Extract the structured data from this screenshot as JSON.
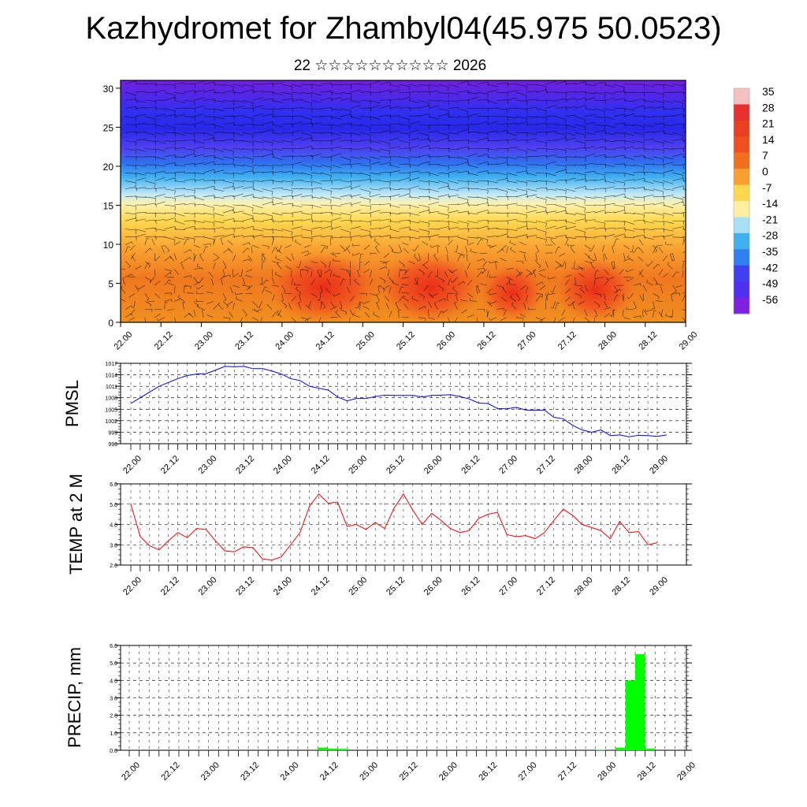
{
  "title": "Kazhydromet for Zhambyl04(45.975 50.0523)",
  "subtitle": "22 ☆☆☆☆☆☆☆☆☆☆ 2026",
  "x_tick_labels": [
    "22.00",
    "22.12",
    "23.00",
    "23.12",
    "24.00",
    "24.12",
    "25.00",
    "25.12",
    "26.00",
    "26.12",
    "27.00",
    "27.12",
    "28.00",
    "28.12",
    "29.00"
  ],
  "colors": {
    "pmsl_line": "#0000ff",
    "temp_line": "#ff0000",
    "precip_bar": "#00ff00"
  },
  "chart_data": [
    {
      "type": "heatmap",
      "title": "",
      "xlabel": "",
      "ylabel": "",
      "ylim": [
        0,
        31
      ],
      "yticks": [
        0,
        5,
        10,
        15,
        20,
        25,
        30
      ],
      "colorbar_labels": [
        "35",
        "28",
        "21",
        "14",
        "7",
        "0",
        "-7",
        "-14",
        "-21",
        "-28",
        "-35",
        "-42",
        "-49",
        "-56"
      ],
      "colorbar_colors": [
        "#f5c0c0",
        "#e83030",
        "#e84020",
        "#f05020",
        "#f07020",
        "#f8a030",
        "#ffd850",
        "#fff0a0",
        "#a8e0f8",
        "#40b0f0",
        "#3080f0",
        "#4040f0",
        "#5030f0",
        "#8020e0"
      ],
      "overlay": "wind barbs"
    },
    {
      "type": "line",
      "ylabel": "PMSL",
      "ylim": [
        996,
        1017
      ],
      "yticks": [
        "996",
        "999",
        "1002",
        "1005",
        "1008",
        "1011",
        "1014",
        "1017"
      ],
      "series": [
        {
          "values": [
            1006.5,
            1008,
            1009.5,
            1011,
            1012,
            1013,
            1013.8,
            1014.2,
            1014.3,
            1015.2,
            1016.2,
            1016.1,
            1016.2,
            1015.6,
            1015.6,
            1015,
            1014.2,
            1013,
            1012.5,
            1011,
            1010.5,
            1010,
            1008.2,
            1007.2,
            1007.8,
            1007.8,
            1008.3,
            1008.7,
            1008.6,
            1008.6,
            1008.6,
            1008.2,
            1008.6,
            1008.7,
            1008.8,
            1008.3,
            1007.7,
            1006.6,
            1006.5,
            1005.2,
            1005.1,
            1005.5,
            1004.8,
            1004.7,
            1004.8,
            1002.9,
            1002.5,
            1000.8,
            999.6,
            999,
            999.6,
            998.1,
            998.3,
            997.8,
            998.2,
            998.1,
            997.9,
            998.3
          ]
        }
      ]
    },
    {
      "type": "line",
      "ylabel": "TEMP at 2 M",
      "ylim": [
        2.0,
        6.0
      ],
      "yticks": [
        "2.0",
        "3.0",
        "4.0",
        "5.0",
        "6.0"
      ],
      "series": [
        {
          "values": [
            5.0,
            3.4,
            2.95,
            2.75,
            3.2,
            3.6,
            3.35,
            3.8,
            3.75,
            3.2,
            2.7,
            2.65,
            2.9,
            2.85,
            2.3,
            2.25,
            2.4,
            3.0,
            3.6,
            4.9,
            5.5,
            5.05,
            5.1,
            3.9,
            4.0,
            3.75,
            4.1,
            3.8,
            4.8,
            5.5,
            4.7,
            4.0,
            4.55,
            4.2,
            3.8,
            3.6,
            3.7,
            4.3,
            4.5,
            4.6,
            3.5,
            3.4,
            3.45,
            3.3,
            3.6,
            4.2,
            4.75,
            4.45,
            4.0,
            3.85,
            3.7,
            3.3,
            4.15,
            3.6,
            3.65,
            3.0,
            3.1
          ]
        }
      ]
    },
    {
      "type": "bar",
      "ylabel": "PRECIP, mm",
      "ylim": [
        0.0,
        6.0
      ],
      "yticks": [
        "0.0",
        "1.0",
        "2.0",
        "3.0",
        "4.0",
        "5.0",
        "6.0"
      ],
      "series": [
        {
          "values": [
            0,
            0,
            0,
            0,
            0,
            0,
            0,
            0,
            0,
            0,
            0,
            0,
            0,
            0,
            0,
            0,
            0,
            0,
            0,
            0.15,
            0.1,
            0.08,
            0,
            0,
            0,
            0,
            0,
            0,
            0,
            0,
            0,
            0,
            0,
            0,
            0,
            0,
            0,
            0,
            0,
            0,
            0,
            0,
            0,
            0,
            0,
            0,
            0,
            0.02,
            0,
            0.15,
            4.0,
            5.5,
            0.1,
            0,
            0,
            0,
            0
          ]
        }
      ]
    }
  ]
}
